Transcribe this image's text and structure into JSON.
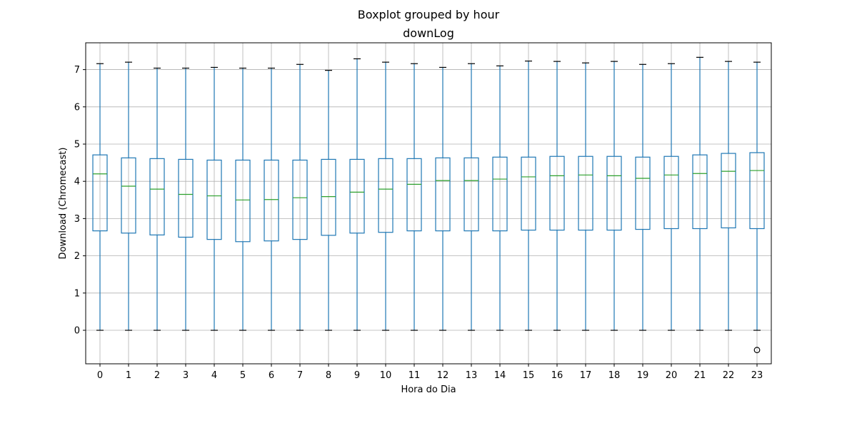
{
  "chart_data": {
    "type": "box",
    "suptitle": "Boxplot grouped by hour",
    "title": "downLog",
    "xlabel": "Hora do Dia",
    "ylabel": "Download (Chromecast)",
    "ylim": [
      -0.9,
      7.72
    ],
    "yticks": [
      0,
      1,
      2,
      3,
      4,
      5,
      6,
      7
    ],
    "grid": true,
    "categories": [
      "0",
      "1",
      "2",
      "3",
      "4",
      "5",
      "6",
      "7",
      "8",
      "9",
      "10",
      "11",
      "12",
      "13",
      "14",
      "15",
      "16",
      "17",
      "18",
      "19",
      "20",
      "21",
      "22",
      "23"
    ],
    "boxes": [
      {
        "whislo": 0,
        "q1": 2.67,
        "med": 4.2,
        "q3": 4.71,
        "whishi": 7.16,
        "fliers": []
      },
      {
        "whislo": 0,
        "q1": 2.61,
        "med": 3.87,
        "q3": 4.63,
        "whishi": 7.2,
        "fliers": []
      },
      {
        "whislo": 0,
        "q1": 2.56,
        "med": 3.79,
        "q3": 4.61,
        "whishi": 7.04,
        "fliers": []
      },
      {
        "whislo": 0,
        "q1": 2.5,
        "med": 3.65,
        "q3": 4.59,
        "whishi": 7.04,
        "fliers": []
      },
      {
        "whislo": 0,
        "q1": 2.44,
        "med": 3.61,
        "q3": 4.57,
        "whishi": 7.06,
        "fliers": []
      },
      {
        "whislo": 0,
        "q1": 2.38,
        "med": 3.5,
        "q3": 4.57,
        "whishi": 7.04,
        "fliers": []
      },
      {
        "whislo": 0,
        "q1": 2.4,
        "med": 3.51,
        "q3": 4.57,
        "whishi": 7.04,
        "fliers": []
      },
      {
        "whislo": 0,
        "q1": 2.44,
        "med": 3.56,
        "q3": 4.57,
        "whishi": 7.14,
        "fliers": []
      },
      {
        "whislo": 0,
        "q1": 2.55,
        "med": 3.59,
        "q3": 4.59,
        "whishi": 6.98,
        "fliers": []
      },
      {
        "whislo": 0,
        "q1": 2.61,
        "med": 3.71,
        "q3": 4.59,
        "whishi": 7.29,
        "fliers": []
      },
      {
        "whislo": 0,
        "q1": 2.63,
        "med": 3.79,
        "q3": 4.61,
        "whishi": 7.2,
        "fliers": []
      },
      {
        "whislo": 0,
        "q1": 2.67,
        "med": 3.92,
        "q3": 4.61,
        "whishi": 7.16,
        "fliers": []
      },
      {
        "whislo": 0,
        "q1": 2.67,
        "med": 4.02,
        "q3": 4.63,
        "whishi": 7.06,
        "fliers": []
      },
      {
        "whislo": 0,
        "q1": 2.67,
        "med": 4.02,
        "q3": 4.63,
        "whishi": 7.16,
        "fliers": []
      },
      {
        "whislo": 0,
        "q1": 2.67,
        "med": 4.06,
        "q3": 4.65,
        "whishi": 7.1,
        "fliers": []
      },
      {
        "whislo": 0,
        "q1": 2.69,
        "med": 4.12,
        "q3": 4.65,
        "whishi": 7.23,
        "fliers": []
      },
      {
        "whislo": 0,
        "q1": 2.69,
        "med": 4.15,
        "q3": 4.67,
        "whishi": 7.22,
        "fliers": []
      },
      {
        "whislo": 0,
        "q1": 2.69,
        "med": 4.17,
        "q3": 4.67,
        "whishi": 7.18,
        "fliers": []
      },
      {
        "whislo": 0,
        "q1": 2.69,
        "med": 4.15,
        "q3": 4.67,
        "whishi": 7.22,
        "fliers": []
      },
      {
        "whislo": 0,
        "q1": 2.71,
        "med": 4.08,
        "q3": 4.65,
        "whishi": 7.14,
        "fliers": []
      },
      {
        "whislo": 0,
        "q1": 2.73,
        "med": 4.17,
        "q3": 4.67,
        "whishi": 7.16,
        "fliers": []
      },
      {
        "whislo": 0,
        "q1": 2.73,
        "med": 4.21,
        "q3": 4.71,
        "whishi": 7.33,
        "fliers": []
      },
      {
        "whislo": 0,
        "q1": 2.75,
        "med": 4.27,
        "q3": 4.75,
        "whishi": 7.22,
        "fliers": []
      },
      {
        "whislo": 0,
        "q1": 2.73,
        "med": 4.29,
        "q3": 4.77,
        "whishi": 7.2,
        "fliers": [
          -0.53
        ]
      }
    ],
    "colors": {
      "box": "#1f77b4",
      "median": "#2ca02c",
      "cap": "#000000",
      "grid": "#b0b0b0",
      "flier": "#000000"
    }
  }
}
